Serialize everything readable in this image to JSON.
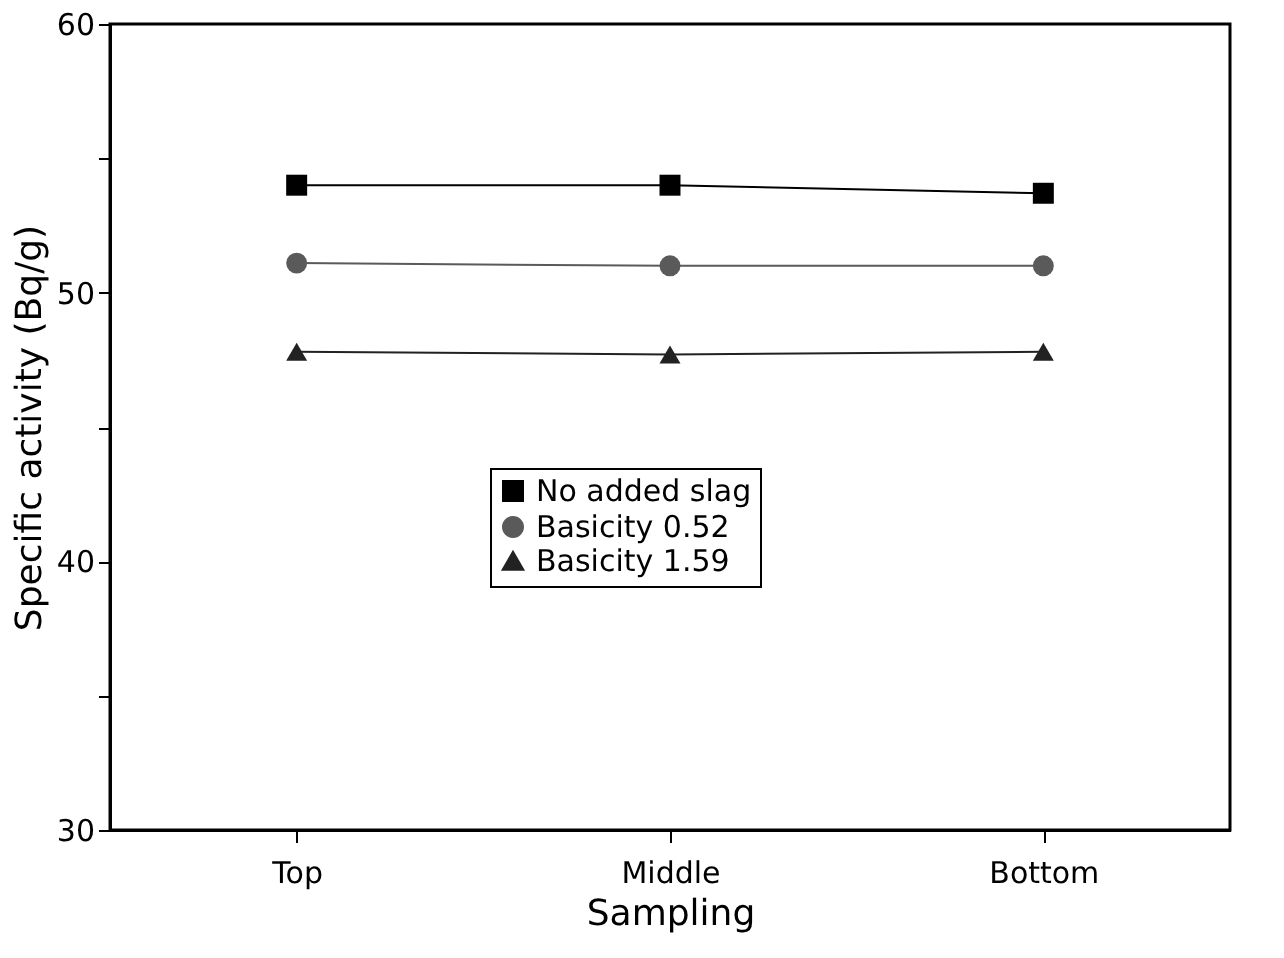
{
  "chart_data": {
    "type": "line",
    "xlabel": "Sampling",
    "ylabel": "Specific activity (Bq/g)",
    "categories": [
      "Top",
      "Middle",
      "Bottom"
    ],
    "series": [
      {
        "name": "No added slag",
        "color": "#000000",
        "marker": "square",
        "values": [
          54.0,
          54.0,
          53.7
        ]
      },
      {
        "name": "Basicity 0.52",
        "color": "#5a5a5a",
        "marker": "circle",
        "values": [
          51.1,
          51.0,
          51.0
        ]
      },
      {
        "name": "Basicity 1.59",
        "color": "#222222",
        "marker": "triangle",
        "values": [
          47.8,
          47.7,
          47.8
        ]
      }
    ],
    "ylim": [
      30,
      60
    ],
    "yticks": [
      30,
      {
        "value": 35,
        "label": null
      },
      40,
      {
        "value": 45,
        "label": null
      },
      50,
      {
        "value": 55,
        "label": null
      },
      60
    ],
    "grid": false,
    "legend": "center",
    "line_style": "solid"
  }
}
